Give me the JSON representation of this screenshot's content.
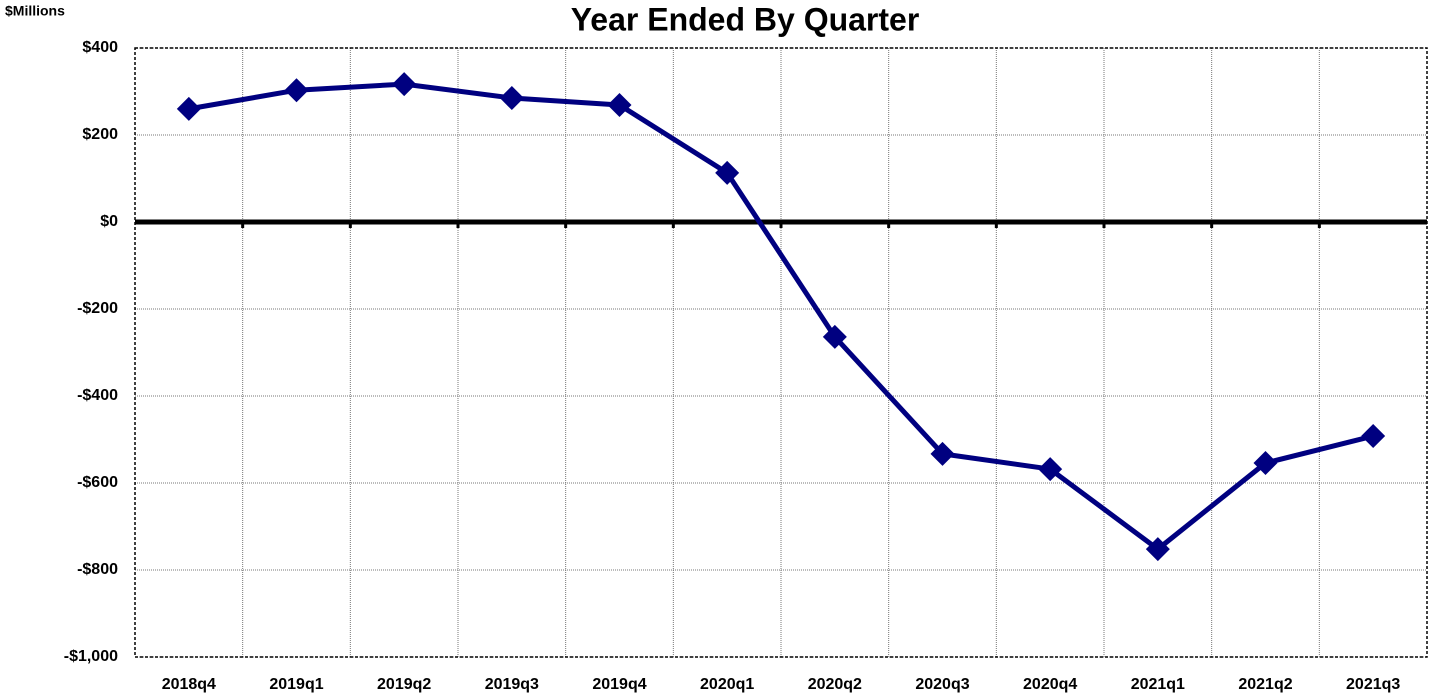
{
  "chart_data": {
    "type": "line",
    "title": "Year Ended By Quarter",
    "ylabel": "$Millions",
    "categories": [
      "2018q4",
      "2019q1",
      "2019q2",
      "2019q3",
      "2019q4",
      "2020q1",
      "2020q2",
      "2020q3",
      "2020q4",
      "2021q1",
      "2021q2",
      "2021q3"
    ],
    "series": [
      {
        "name": "Year Ended By Quarter",
        "color": "#000080",
        "values": [
          260,
          303,
          317,
          285,
          269,
          113,
          -264,
          -533,
          -568,
          -752,
          -554,
          -492
        ]
      }
    ],
    "ylim": [
      -1000,
      400
    ],
    "yticks": [
      {
        "value": -1000,
        "label": "-$1,000"
      },
      {
        "value": -800,
        "label": "-$800"
      },
      {
        "value": -600,
        "label": "-$600"
      },
      {
        "value": -400,
        "label": "-$400"
      },
      {
        "value": -200,
        "label": "-$200"
      },
      {
        "value": 0,
        "label": "$0"
      },
      {
        "value": 200,
        "label": "$200"
      },
      {
        "value": 400,
        "label": "$400"
      }
    ],
    "grid": true
  }
}
